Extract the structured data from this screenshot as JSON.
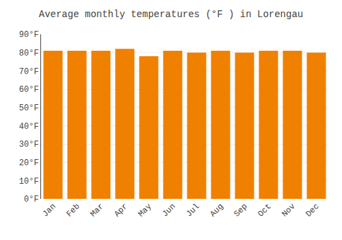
{
  "chart_data": {
    "type": "bar",
    "title": "Average monthly temperatures (°F ) in Lorengau",
    "categories": [
      "Jan",
      "Feb",
      "Mar",
      "Apr",
      "May",
      "Jun",
      "Jul",
      "Aug",
      "Sep",
      "Oct",
      "Nov",
      "Dec"
    ],
    "values": [
      81,
      81,
      81,
      82,
      78,
      81,
      80,
      81,
      80,
      81,
      81,
      80
    ],
    "color": "#F08000",
    "ylim": [
      0,
      90
    ],
    "yticks": [
      {
        "value": 0,
        "label": "0°F"
      },
      {
        "value": 10,
        "label": "10°F"
      },
      {
        "value": 20,
        "label": "20°F"
      },
      {
        "value": 30,
        "label": "30°F"
      },
      {
        "value": 40,
        "label": "40°F"
      },
      {
        "value": 50,
        "label": "50°F"
      },
      {
        "value": 60,
        "label": "60°F"
      },
      {
        "value": 70,
        "label": "70°F"
      },
      {
        "value": 80,
        "label": "80°F"
      },
      {
        "value": 90,
        "label": "90°F"
      }
    ],
    "grid": true
  }
}
